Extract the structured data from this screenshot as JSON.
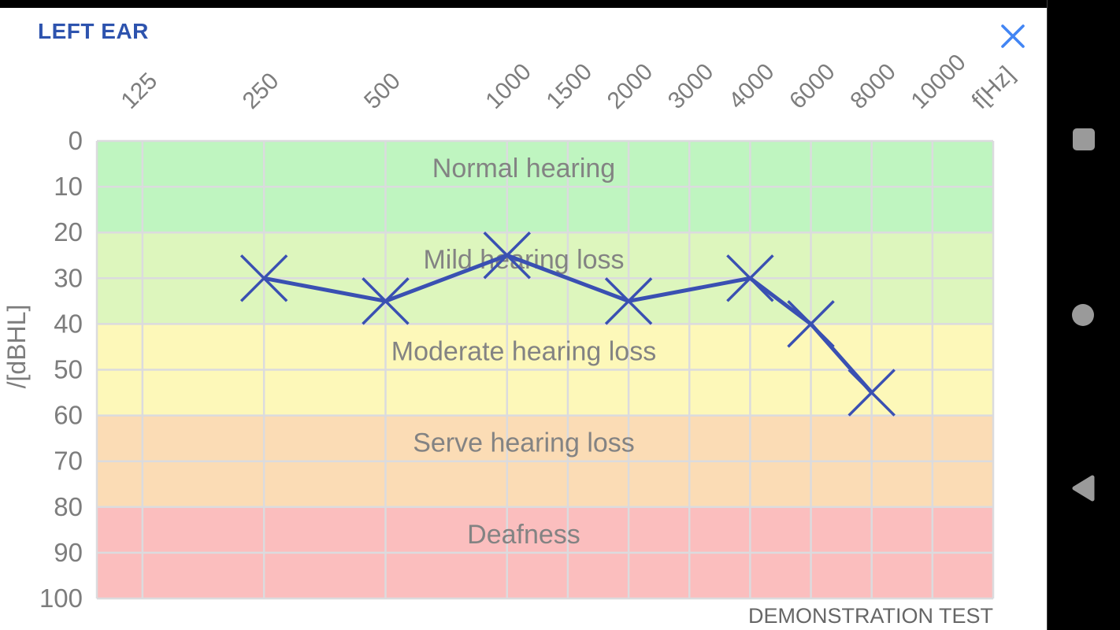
{
  "header": {
    "title": "LEFT EAR",
    "title_color": "#2d53ae",
    "close_icon": "close-x",
    "close_icon_color": "#4285f4"
  },
  "chart_data": {
    "type": "line",
    "x_ticks": [
      "125",
      "250",
      "500",
      "1000",
      "1500",
      "2000",
      "3000",
      "4000",
      "6000",
      "8000",
      "10000"
    ],
    "x_axis_unit_label": "f[Hz]",
    "y_ticks": [
      "0",
      "10",
      "20",
      "30",
      "40",
      "50",
      "60",
      "70",
      "80",
      "90",
      "100"
    ],
    "y_axis_label": "/[dBHL]",
    "y_range": [
      0,
      100
    ],
    "grid": true,
    "zones": [
      {
        "label": "Normal hearing",
        "from_db": 0,
        "to_db": 20,
        "color": "#bff5c0"
      },
      {
        "label": "Mild hearing loss",
        "from_db": 20,
        "to_db": 40,
        "color": "#ddf6bd"
      },
      {
        "label": "Moderate hearing loss",
        "from_db": 40,
        "to_db": 60,
        "color": "#fdf8b9"
      },
      {
        "label": "Serve hearing loss",
        "from_db": 60,
        "to_db": 80,
        "color": "#fbdcb5"
      },
      {
        "label": "Deafness",
        "from_db": 80,
        "to_db": 100,
        "color": "#fbbebe"
      }
    ],
    "series": [
      {
        "name": "left ear threshold",
        "marker": "x",
        "color": "#3a50b2",
        "points": [
          {
            "freq": 250,
            "db": 30
          },
          {
            "freq": 500,
            "db": 35
          },
          {
            "freq": 1000,
            "db": 25
          },
          {
            "freq": 2000,
            "db": 35
          },
          {
            "freq": 4000,
            "db": 30
          },
          {
            "freq": 6000,
            "db": 40
          },
          {
            "freq": 8000,
            "db": 55
          }
        ]
      }
    ],
    "watermark": "DEMONSTRATION TEST"
  },
  "nav_bar": {
    "icons": [
      {
        "name": "recents",
        "shape": "square"
      },
      {
        "name": "home",
        "shape": "circle"
      },
      {
        "name": "back",
        "shape": "triangle-left"
      }
    ],
    "icon_color": "#9a9a9a"
  }
}
